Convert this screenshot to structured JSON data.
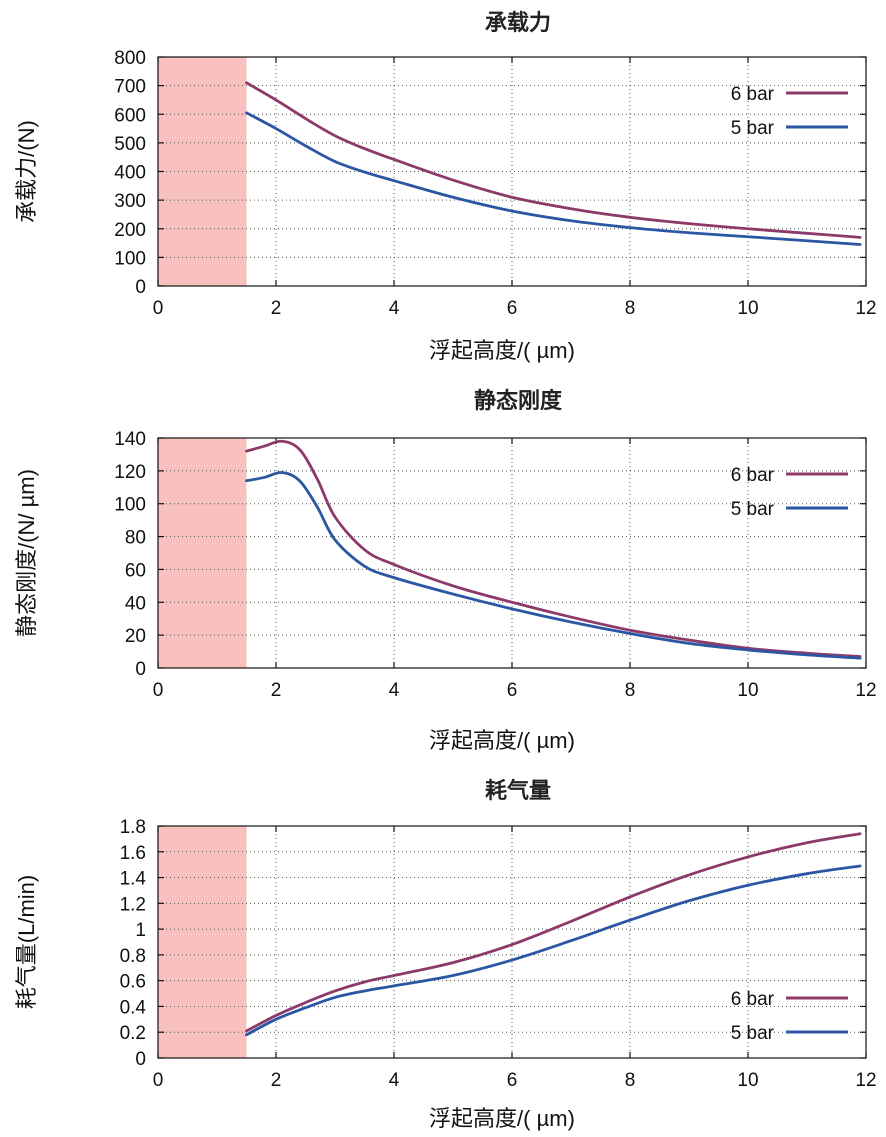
{
  "chart_data": [
    {
      "type": "line",
      "title": "承载力",
      "xlabel": "浮起高度/( µm)",
      "ylabel": "承载力/(N)",
      "xlim": [
        0,
        12
      ],
      "ylim": [
        0,
        800
      ],
      "xticks": [
        "0",
        "2",
        "4",
        "6",
        "8",
        "10",
        "12"
      ],
      "yticks": [
        "0",
        "100",
        "200",
        "300",
        "400",
        "500",
        "600",
        "700",
        "800"
      ],
      "grid": true,
      "legend_position": "top-right",
      "shaded_region": {
        "x": [
          0,
          1.5
        ],
        "color": "#f9c0c0"
      },
      "series": [
        {
          "name": "6 bar",
          "color": "#8b3a6a",
          "x": [
            1.5,
            2,
            2.5,
            3,
            3.5,
            4,
            5,
            6,
            7,
            8,
            9,
            10,
            11,
            11.9
          ],
          "y": [
            710,
            650,
            585,
            525,
            480,
            442,
            370,
            310,
            270,
            240,
            218,
            200,
            184,
            170
          ]
        },
        {
          "name": "5 bar",
          "color": "#2a56a4",
          "x": [
            1.5,
            2,
            2.5,
            3,
            3.5,
            4,
            5,
            6,
            7,
            8,
            9,
            10,
            11,
            11.9
          ],
          "y": [
            605,
            550,
            490,
            435,
            398,
            368,
            310,
            262,
            228,
            204,
            186,
            172,
            158,
            145
          ]
        }
      ]
    },
    {
      "type": "line",
      "title": "静态刚度",
      "xlabel": "浮起高度/( µm)",
      "ylabel": "静态刚度/(N/ µm)",
      "xlim": [
        0,
        12
      ],
      "ylim": [
        0,
        140
      ],
      "xticks": [
        "0",
        "2",
        "4",
        "6",
        "8",
        "10",
        "12"
      ],
      "yticks": [
        "0",
        "20",
        "40",
        "60",
        "80",
        "100",
        "120",
        "140"
      ],
      "grid": true,
      "legend_position": "top-right",
      "shaded_region": {
        "x": [
          0,
          1.5
        ],
        "color": "#f9c0c0"
      },
      "series": [
        {
          "name": "6 bar",
          "color": "#8b3a6a",
          "x": [
            1.5,
            1.8,
            2.1,
            2.4,
            2.7,
            3.0,
            3.5,
            4,
            5,
            6,
            7,
            8,
            9,
            10,
            11,
            11.9
          ],
          "y": [
            132,
            135,
            138,
            133,
            115,
            92,
            72,
            63,
            50,
            40,
            31,
            23,
            17,
            12,
            9,
            7
          ]
        },
        {
          "name": "5 bar",
          "color": "#2a56a4",
          "x": [
            1.5,
            1.8,
            2.1,
            2.4,
            2.7,
            3.0,
            3.5,
            4,
            5,
            6,
            7,
            8,
            9,
            10,
            11,
            11.9
          ],
          "y": [
            114,
            116,
            119,
            114,
            98,
            78,
            62,
            55,
            45,
            36,
            28,
            21,
            15,
            11,
            8,
            6
          ]
        }
      ]
    },
    {
      "type": "line",
      "title": "耗气量",
      "xlabel": "浮起高度/( µm)",
      "ylabel": "耗气量(L/min)",
      "xlim": [
        0,
        12
      ],
      "ylim": [
        0,
        1.8
      ],
      "xticks": [
        "0",
        "2",
        "4",
        "6",
        "8",
        "10",
        "12"
      ],
      "yticks": [
        "0",
        "0.2",
        "0.4",
        "0.6",
        "0.8",
        "1",
        "1.2",
        "1.4",
        "1.6",
        "1.8"
      ],
      "grid": true,
      "legend_position": "bottom-right",
      "shaded_region": {
        "x": [
          0,
          1.5
        ],
        "color": "#f9c0c0"
      },
      "series": [
        {
          "name": "6 bar",
          "color": "#8b3a6a",
          "x": [
            1.5,
            2,
            2.5,
            3,
            3.5,
            4,
            5,
            6,
            7,
            8,
            9,
            10,
            11,
            11.9
          ],
          "y": [
            0.21,
            0.33,
            0.43,
            0.52,
            0.59,
            0.64,
            0.74,
            0.88,
            1.06,
            1.25,
            1.42,
            1.56,
            1.67,
            1.74
          ]
        },
        {
          "name": "5 bar",
          "color": "#2a56a4",
          "x": [
            1.5,
            2,
            2.5,
            3,
            3.5,
            4,
            5,
            6,
            7,
            8,
            9,
            10,
            11,
            11.9
          ],
          "y": [
            0.18,
            0.3,
            0.39,
            0.47,
            0.52,
            0.56,
            0.64,
            0.76,
            0.91,
            1.07,
            1.22,
            1.34,
            1.43,
            1.49
          ]
        }
      ]
    }
  ]
}
